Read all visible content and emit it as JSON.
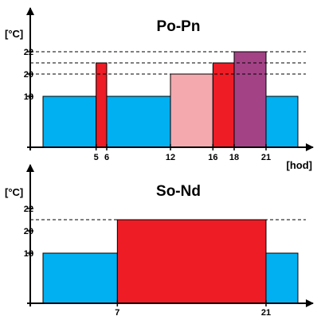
{
  "colors": {
    "blue": "#00B0F0",
    "red": "#EE1C25",
    "pink": "#F4A9AE",
    "purple": "#A34386",
    "axis": "#000000"
  },
  "chart_data": [
    {
      "type": "bar",
      "title": "Po-Pn",
      "ylabel": "[°C]",
      "xlabel": "[hod]",
      "xlim": [
        0,
        24
      ],
      "ylim": [
        12,
        25
      ],
      "yticks": [
        18,
        20,
        22
      ],
      "xticks": [
        5,
        6,
        12,
        16,
        18,
        21
      ],
      "ref_lines": [
        20,
        21,
        22
      ],
      "segments": [
        {
          "start": 0,
          "end": 5,
          "value": 18,
          "color": "blue"
        },
        {
          "start": 5,
          "end": 6,
          "value": 21,
          "color": "red"
        },
        {
          "start": 6,
          "end": 12,
          "value": 18,
          "color": "blue"
        },
        {
          "start": 12,
          "end": 16,
          "value": 20,
          "color": "pink"
        },
        {
          "start": 16,
          "end": 18,
          "value": 21,
          "color": "red"
        },
        {
          "start": 18,
          "end": 21,
          "value": 22,
          "color": "purple"
        },
        {
          "start": 21,
          "end": 24,
          "value": 18,
          "color": "blue"
        }
      ]
    },
    {
      "type": "bar",
      "title": "So-Nd",
      "ylabel": "[°C]",
      "xlabel": "",
      "xlim": [
        0,
        24
      ],
      "ylim": [
        12,
        25
      ],
      "yticks": [
        18,
        20,
        22
      ],
      "xticks": [
        7,
        21
      ],
      "ref_lines": [
        21
      ],
      "segments": [
        {
          "start": 0,
          "end": 7,
          "value": 18,
          "color": "blue"
        },
        {
          "start": 7,
          "end": 21,
          "value": 21,
          "color": "red"
        },
        {
          "start": 21,
          "end": 24,
          "value": 18,
          "color": "blue"
        }
      ]
    }
  ]
}
